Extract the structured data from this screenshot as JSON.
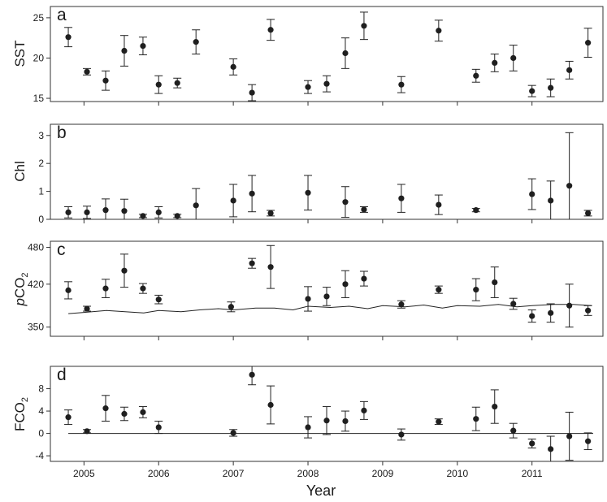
{
  "x_axis": {
    "label": "Year",
    "ticks": [
      2005,
      2006,
      2007,
      2008,
      2009,
      2010,
      2011
    ],
    "xlim": [
      2004.55,
      2011.95
    ]
  },
  "chart_data": [
    {
      "panel": "a",
      "type": "scatter",
      "ylabel": "SST",
      "ylim": [
        14.6,
        26.4
      ],
      "yticks": [
        15,
        20,
        25
      ],
      "error_bars": true,
      "series": [
        {
          "x": [
            2004.79,
            2005.04,
            2005.29,
            2005.54,
            2005.79,
            2006.0,
            2006.25,
            2006.5,
            2007.0,
            2007.25,
            2007.5,
            2008.0,
            2008.25,
            2008.5,
            2008.75,
            2009.25,
            2009.75,
            2010.25,
            2010.5,
            2010.75,
            2011.0,
            2011.25,
            2011.5,
            2011.75
          ],
          "y": [
            22.6,
            18.3,
            17.2,
            20.9,
            21.5,
            16.7,
            16.9,
            22.0,
            18.9,
            15.7,
            23.5,
            16.4,
            16.8,
            20.6,
            24.0,
            16.7,
            23.4,
            17.8,
            19.4,
            20.0,
            15.9,
            16.3,
            18.5,
            21.9
          ],
          "yerr": [
            1.2,
            0.4,
            1.2,
            1.9,
            1.1,
            1.1,
            0.6,
            1.5,
            1.0,
            1.0,
            1.3,
            0.8,
            1.0,
            1.9,
            1.7,
            1.0,
            1.3,
            0.8,
            1.1,
            1.6,
            0.7,
            1.1,
            1.1,
            1.8
          ]
        }
      ]
    },
    {
      "panel": "b",
      "type": "scatter",
      "ylabel": "Chl",
      "ylim": [
        0,
        3.4
      ],
      "yticks": [
        0,
        1,
        2,
        3
      ],
      "error_bars": true,
      "series": [
        {
          "x": [
            2004.79,
            2005.04,
            2005.29,
            2005.54,
            2005.79,
            2006.0,
            2006.25,
            2006.5,
            2007.0,
            2007.25,
            2007.5,
            2008.0,
            2008.5,
            2008.75,
            2009.25,
            2009.75,
            2010.25,
            2011.0,
            2011.25,
            2011.5,
            2011.75
          ],
          "y": [
            0.25,
            0.25,
            0.33,
            0.3,
            0.12,
            0.25,
            0.12,
            0.5,
            0.67,
            0.92,
            0.22,
            0.95,
            0.62,
            0.35,
            0.75,
            0.52,
            0.33,
            0.9,
            0.67,
            1.2,
            0.22
          ],
          "yerr": [
            0.2,
            0.22,
            0.4,
            0.42,
            0.06,
            0.2,
            0.06,
            0.6,
            0.58,
            0.65,
            0.1,
            0.62,
            0.55,
            0.1,
            0.5,
            0.35,
            0.06,
            0.55,
            0.7,
            1.9,
            0.1
          ]
        }
      ]
    },
    {
      "panel": "c",
      "type": "scatter",
      "ylabel_main": "p",
      "ylabel_rest": "CO",
      "ylabel_sub": "2",
      "ylim": [
        335,
        490
      ],
      "yticks": [
        350,
        420,
        480
      ],
      "error_bars": true,
      "series": [
        {
          "x": [
            2004.79,
            2005.04,
            2005.29,
            2005.54,
            2005.79,
            2006.0,
            2006.97,
            2007.25,
            2007.5,
            2008.0,
            2008.25,
            2008.5,
            2008.75,
            2009.25,
            2009.75,
            2010.25,
            2010.5,
            2010.75,
            2011.0,
            2011.25,
            2011.5,
            2011.75
          ],
          "y": [
            410,
            380,
            413,
            442,
            413,
            395,
            383,
            454,
            448,
            396,
            400,
            420,
            429,
            387,
            411,
            411,
            423,
            388,
            368,
            373,
            385,
            377
          ],
          "yerr": [
            14,
            4,
            15,
            27,
            8,
            7,
            8,
            8,
            35,
            20,
            15,
            22,
            12,
            6,
            6,
            18,
            25,
            9,
            10,
            15,
            35,
            8
          ]
        }
      ],
      "reference_line": {
        "x": [
          2004.79,
          2005.0,
          2005.3,
          2005.55,
          2005.8,
          2006.0,
          2006.3,
          2006.55,
          2006.8,
          2007.0,
          2007.3,
          2007.55,
          2007.8,
          2008.0,
          2008.3,
          2008.55,
          2008.8,
          2009.0,
          2009.3,
          2009.55,
          2009.8,
          2010.0,
          2010.3,
          2010.55,
          2010.8,
          2011.0,
          2011.3,
          2011.55,
          2011.8
        ],
        "y": [
          372,
          374,
          377,
          375,
          373,
          377,
          375,
          378,
          380,
          378,
          381,
          381,
          378,
          384,
          382,
          384,
          380,
          385,
          383,
          386,
          381,
          385,
          384,
          387,
          383,
          385,
          387,
          387,
          385
        ]
      }
    },
    {
      "panel": "d",
      "type": "scatter",
      "ylabel_main": "FCO",
      "ylabel_sub": "2",
      "ylim": [
        -5,
        12
      ],
      "yticks": [
        -4,
        0,
        4,
        8
      ],
      "error_bars": true,
      "zero_line": 0,
      "series": [
        {
          "x": [
            2004.79,
            2005.04,
            2005.29,
            2005.54,
            2005.79,
            2006.0,
            2007.0,
            2007.25,
            2007.5,
            2008.0,
            2008.25,
            2008.5,
            2008.75,
            2009.25,
            2009.75,
            2010.25,
            2010.5,
            2010.75,
            2011.0,
            2011.25,
            2011.5,
            2011.75
          ],
          "y": [
            2.9,
            0.4,
            4.5,
            3.5,
            3.8,
            1.1,
            0.1,
            10.5,
            5.1,
            1.1,
            2.3,
            2.2,
            4.1,
            -0.2,
            2.1,
            2.6,
            4.8,
            0.5,
            -1.8,
            -2.8,
            -0.5,
            -1.4
          ],
          "yerr": [
            1.3,
            0.3,
            2.3,
            1.2,
            1.0,
            1.1,
            0.6,
            1.8,
            3.4,
            1.9,
            2.5,
            1.8,
            1.6,
            1.0,
            0.5,
            2.1,
            3.0,
            1.3,
            0.8,
            2.3,
            4.3,
            1.5
          ]
        }
      ]
    }
  ]
}
